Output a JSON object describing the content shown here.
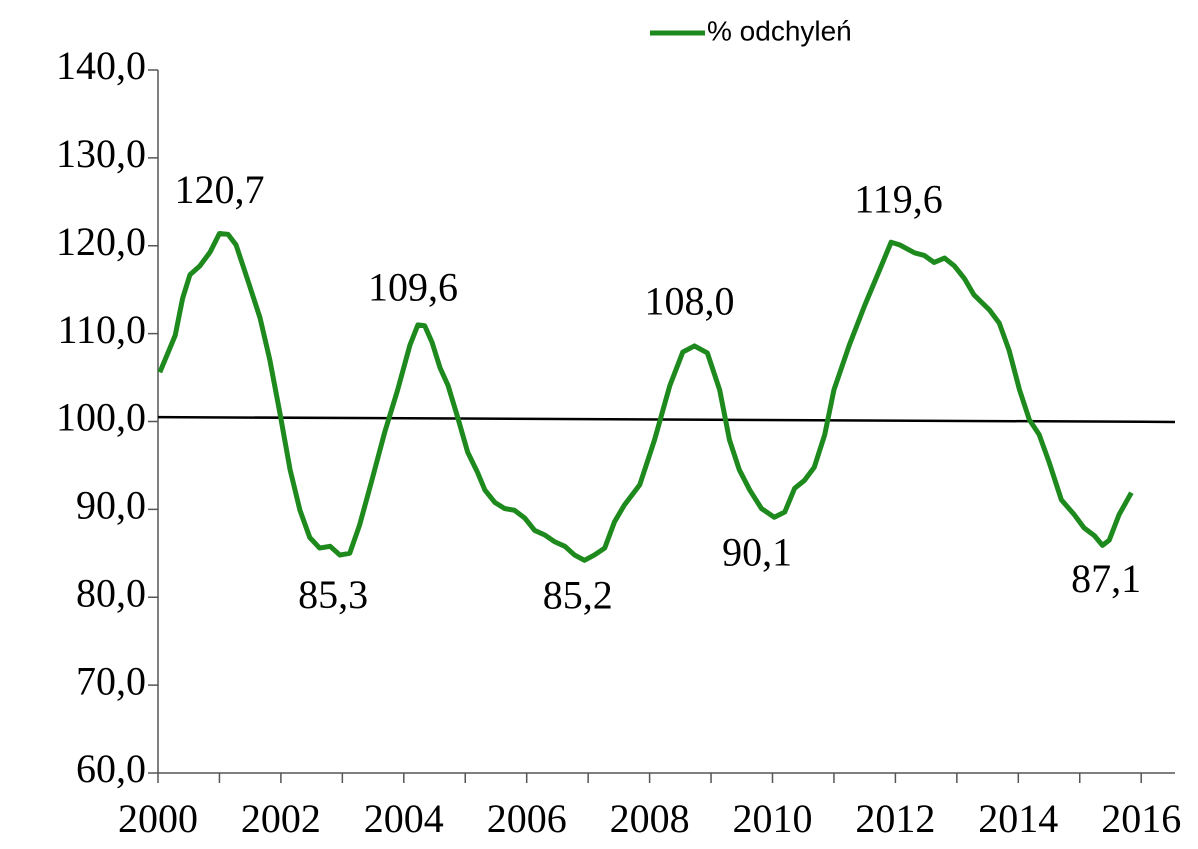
{
  "chart_data": {
    "type": "line",
    "xlim": [
      2000,
      2016.55
    ],
    "xticks": [
      2000,
      2002,
      2004,
      2006,
      2008,
      2010,
      2012,
      2014,
      2016
    ],
    "xminorticks": [
      2001,
      2003,
      2005,
      2007,
      2009,
      2011,
      2013,
      2015
    ],
    "ylim": [
      60,
      140
    ],
    "yticks": [
      {
        "value": 60,
        "label": "60,0"
      },
      {
        "value": 70,
        "label": "70,0"
      },
      {
        "value": 80,
        "label": "80,0"
      },
      {
        "value": 90,
        "label": "90,0"
      },
      {
        "value": 100,
        "label": "100,0"
      },
      {
        "value": 110,
        "label": "110,0"
      },
      {
        "value": 120,
        "label": "120,0"
      },
      {
        "value": 130,
        "label": "130,0"
      },
      {
        "value": 140,
        "label": "140,0"
      }
    ],
    "legend": "top",
    "series": [
      {
        "name": "% odchyleń",
        "color": "#1e8a1e",
        "x": [
          2000.03,
          2000.28,
          2000.4,
          2000.52,
          2000.68,
          2000.85,
          2001.0,
          2001.14,
          2001.27,
          2001.46,
          2001.66,
          2001.82,
          2001.98,
          2002.15,
          2002.31,
          2002.47,
          2002.63,
          2002.8,
          2002.96,
          2003.12,
          2003.28,
          2003.48,
          2003.69,
          2003.9,
          2004.1,
          2004.23,
          2004.34,
          2004.46,
          2004.59,
          2004.72,
          2004.88,
          2005.04,
          2005.2,
          2005.32,
          2005.48,
          2005.64,
          2005.8,
          2005.97,
          2006.13,
          2006.29,
          2006.46,
          2006.62,
          2006.78,
          2006.94,
          2007.1,
          2007.27,
          2007.43,
          2007.59,
          2007.84,
          2008.08,
          2008.33,
          2008.54,
          2008.73,
          2008.94,
          2009.14,
          2009.3,
          2009.46,
          2009.63,
          2009.82,
          2010.03,
          2010.2,
          2010.36,
          2010.52,
          2010.68,
          2010.85,
          2011.0,
          2011.25,
          2011.5,
          2011.74,
          2011.93,
          2012.07,
          2012.31,
          2012.47,
          2012.63,
          2012.8,
          2012.96,
          2013.12,
          2013.28,
          2013.53,
          2013.69,
          2013.85,
          2014.02,
          2014.18,
          2014.34,
          2014.5,
          2014.7,
          2014.91,
          2015.07,
          2015.24,
          2015.37,
          2015.48,
          2015.64,
          2015.84
        ],
        "values": [
          105.6,
          109.8,
          114.0,
          116.7,
          117.7,
          119.3,
          121.4,
          121.3,
          120.1,
          116.1,
          111.8,
          107.0,
          101.1,
          94.5,
          89.9,
          86.8,
          85.6,
          85.8,
          84.8,
          85.0,
          88.2,
          93.3,
          98.8,
          103.6,
          108.7,
          111.0,
          110.9,
          109.0,
          106.1,
          104.1,
          100.4,
          96.5,
          94.2,
          92.2,
          90.8,
          90.1,
          89.9,
          89.0,
          87.6,
          87.1,
          86.3,
          85.8,
          84.8,
          84.2,
          84.8,
          85.6,
          88.6,
          90.5,
          92.8,
          97.9,
          104.1,
          107.9,
          108.6,
          107.8,
          103.6,
          97.9,
          94.5,
          92.2,
          90.1,
          89.1,
          89.7,
          92.4,
          93.3,
          94.8,
          98.5,
          103.6,
          108.7,
          113.2,
          117.2,
          120.4,
          120.1,
          119.2,
          118.9,
          118.1,
          118.6,
          117.7,
          116.3,
          114.4,
          112.7,
          111.2,
          108.1,
          103.6,
          100.2,
          98.5,
          95.4,
          91.1,
          89.4,
          87.9,
          87.0,
          85.9,
          86.5,
          89.4,
          91.9
        ]
      }
    ],
    "trend": {
      "color": "#000000",
      "x": [
        2000,
        2016.55
      ],
      "values": [
        100.5,
        99.95
      ]
    },
    "annotations": [
      {
        "label": "120,7",
        "value": 120.7,
        "x": 2001.0
      },
      {
        "label": "85,3",
        "value": 85.3,
        "x": 2002.85
      },
      {
        "label": "109,6",
        "value": 109.6,
        "x": 2004.15
      },
      {
        "label": "85,2",
        "value": 85.2,
        "x": 2006.83
      },
      {
        "label": "108,0",
        "value": 108.0,
        "x": 2008.65
      },
      {
        "label": "90,1",
        "value": 90.1,
        "x": 2009.75
      },
      {
        "label": "119,6",
        "value": 119.6,
        "x": 2012.05
      },
      {
        "label": "87,1",
        "value": 87.1,
        "x": 2015.43
      }
    ]
  }
}
